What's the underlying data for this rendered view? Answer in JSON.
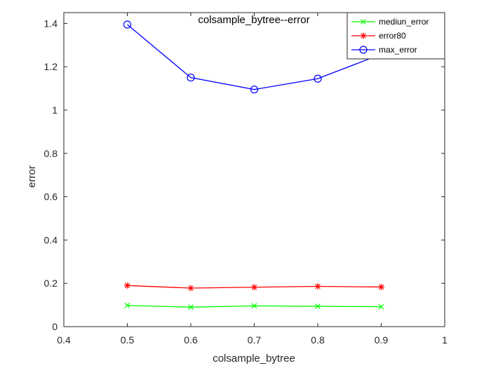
{
  "chart_data": {
    "type": "line",
    "title": "colsample_bytree--error",
    "xlabel": "colsample_bytree",
    "ylabel": "error",
    "xlim": [
      0.4,
      1
    ],
    "ylim": [
      0,
      1.45
    ],
    "xticks": [
      0.4,
      0.5,
      0.6,
      0.7,
      0.8,
      0.9,
      1
    ],
    "xtick_labels": [
      "0.4",
      "0.5",
      "0.6",
      "0.7",
      "0.8",
      "0.9",
      "1"
    ],
    "yticks": [
      0,
      0.2,
      0.4,
      0.6,
      0.8,
      1,
      1.2,
      1.4
    ],
    "ytick_labels": [
      "0",
      "0.2",
      "0.4",
      "0.6",
      "0.8",
      "1",
      "1.2",
      "1.4"
    ],
    "grid": false,
    "legend_position": "top-right",
    "x": [
      0.5,
      0.6,
      0.7,
      0.8,
      0.9
    ],
    "series": [
      {
        "name": "mediun_error",
        "color": "#00ff00",
        "marker": "x",
        "values": [
          0.098,
          0.09,
          0.096,
          0.094,
          0.092
        ]
      },
      {
        "name": "error80",
        "color": "#ff0000",
        "marker": "asterisk",
        "values": [
          0.19,
          0.178,
          0.182,
          0.186,
          0.183
        ]
      },
      {
        "name": "max_error",
        "color": "#0000ff",
        "marker": "circle",
        "values": [
          1.395,
          1.15,
          1.095,
          1.145,
          1.258
        ]
      }
    ]
  }
}
